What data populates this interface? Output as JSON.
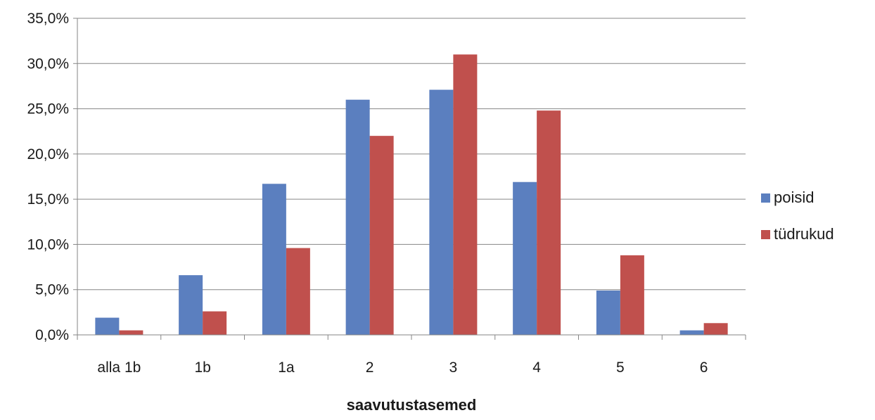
{
  "chart_data": {
    "type": "bar",
    "title": "",
    "xlabel": "saavutustasemed",
    "ylabel": "",
    "categories": [
      "alla 1b",
      "1b",
      "1a",
      "2",
      "3",
      "4",
      "5",
      "6"
    ],
    "series": [
      {
        "name": "poisid",
        "color": "#5b7fbf",
        "values": [
          1.9,
          6.6,
          16.7,
          26.0,
          27.1,
          16.9,
          4.9,
          0.5
        ]
      },
      {
        "name": "tüdrukud",
        "color": "#c0504d",
        "values": [
          0.5,
          2.6,
          9.6,
          22.0,
          31.0,
          24.8,
          8.8,
          1.3
        ]
      }
    ],
    "ylim": [
      0,
      35
    ],
    "yticks": [
      0,
      5,
      10,
      15,
      20,
      25,
      30,
      35
    ],
    "ytick_labels": [
      "0,0%",
      "5,0%",
      "10,0%",
      "15,0%",
      "20,0%",
      "25,0%",
      "30,0%",
      "35,0%"
    ],
    "grid": true,
    "legend_position": "right"
  }
}
